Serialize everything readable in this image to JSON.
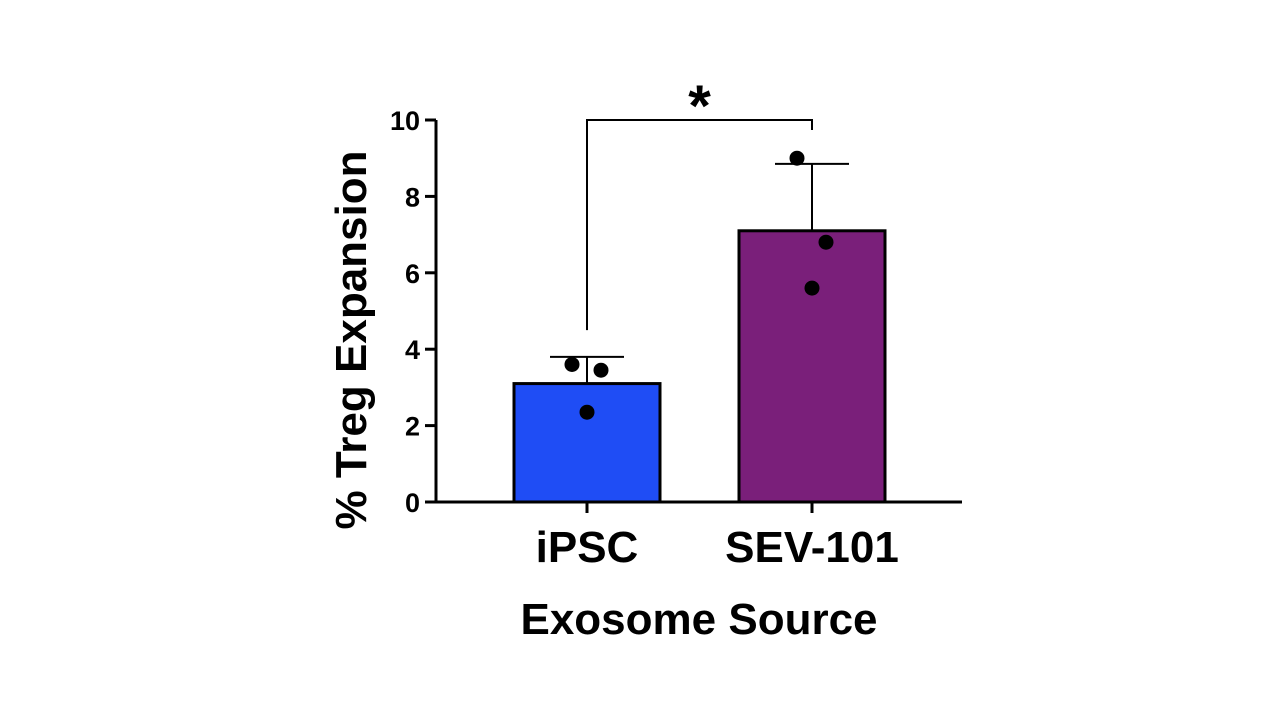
{
  "chart_data": {
    "type": "bar",
    "categories": [
      "iPSC",
      "SEV-101"
    ],
    "values": [
      3.1,
      7.1
    ],
    "error_plus": [
      0.7,
      1.75
    ],
    "points": [
      [
        3.6,
        3.45,
        2.35
      ],
      [
        9.0,
        6.8,
        5.6
      ]
    ],
    "colors": [
      "#1f4df5",
      "#7a1f7a"
    ],
    "title": "",
    "xlabel": "Exosome Source",
    "ylabel": "% Treg Expansion",
    "ylim": [
      0,
      10
    ],
    "yticks": [
      0,
      2,
      4,
      6,
      8,
      10
    ],
    "ytick_labels": [
      "0",
      "2",
      "4",
      "6",
      "8",
      "10"
    ],
    "grid": false,
    "annotations": [
      {
        "type": "significance-bracket",
        "from": "iPSC",
        "to": "SEV-101",
        "text": "*"
      }
    ]
  }
}
